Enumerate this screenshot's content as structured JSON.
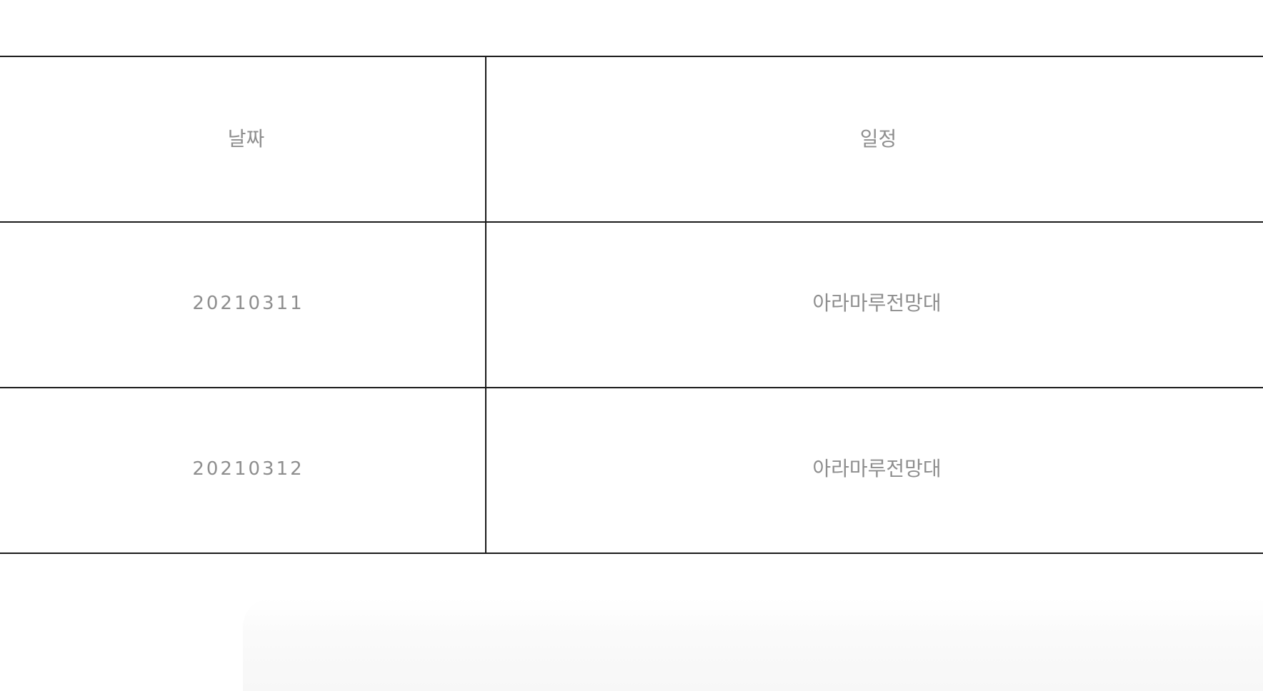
{
  "table": {
    "headers": {
      "date": "날짜",
      "schedule": "일정"
    },
    "rows": [
      {
        "date": "20210311",
        "schedule": "아라마루전망대"
      },
      {
        "date": "20210312",
        "schedule": "아라마루전망대"
      }
    ]
  }
}
